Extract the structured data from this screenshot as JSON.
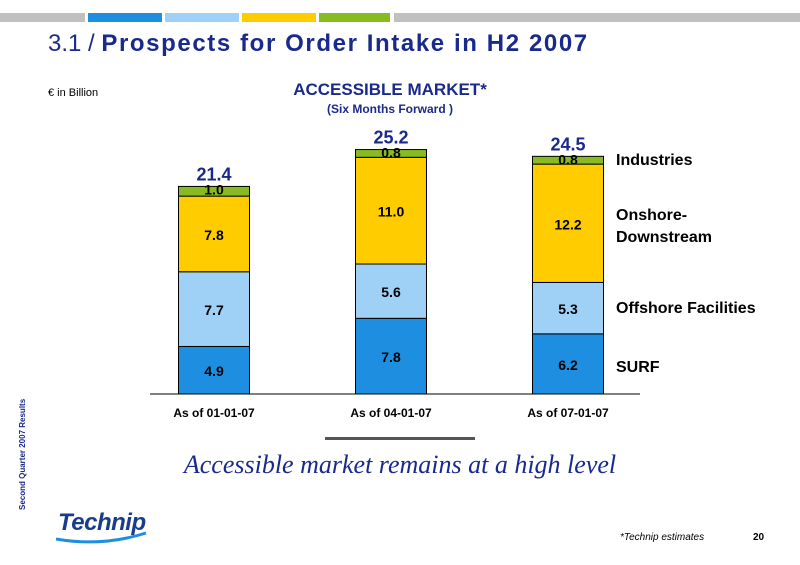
{
  "colors": {
    "topbar": [
      "#c0c0c0",
      "#1e8fe0",
      "#9fd0f5",
      "#ffcc00",
      "#88bb22",
      "#c0c0c0"
    ],
    "series": {
      "SURF": "#1e8fe0",
      "Offshore Facilities": "#9fd0f5",
      "Onshore-Downstream": "#ffcc00",
      "Industries": "#88bb22"
    },
    "title": "#1a2a8c"
  },
  "header": {
    "section_number": "3.1 /",
    "title": "Prospects for Order Intake in H2 2007",
    "unit": "€ in Billion"
  },
  "chart_data": {
    "type": "bar",
    "stacked": true,
    "title": "ACCESSIBLE MARKET*",
    "subtitle": "(Six Months Forward )",
    "categories": [
      "As of 01-01-07",
      "As of 04-01-07",
      "As of 07-01-07"
    ],
    "series": [
      {
        "name": "SURF",
        "values": [
          4.9,
          7.8,
          6.2
        ]
      },
      {
        "name": "Offshore Facilities",
        "values": [
          7.7,
          5.6,
          5.3
        ]
      },
      {
        "name": "Onshore-Downstream",
        "values": [
          7.8,
          11.0,
          12.2
        ]
      },
      {
        "name": "Industries",
        "values": [
          1.0,
          0.8,
          0.8
        ]
      }
    ],
    "value_labels": [
      [
        "4.9",
        "7.8",
        "6.2"
      ],
      [
        "7.7",
        "5.6",
        "5.3"
      ],
      [
        "7.8",
        "11.0",
        "12.2"
      ],
      [
        "1.0",
        "0.8",
        "0.8"
      ]
    ],
    "totals": [
      21.4,
      25.2,
      24.5
    ],
    "total_labels": [
      "21.4",
      "25.2",
      "24.5"
    ],
    "legend_placement": "right",
    "legend_labels": {
      "Industries": "Industries",
      "Onshore-Downstream": [
        "Onshore-",
        "Downstream"
      ],
      "Offshore Facilities": "Offshore Facilities",
      "SURF": "SURF"
    },
    "ylim": [
      0,
      26
    ],
    "grid": false
  },
  "tagline": "Accessible market remains at a high level",
  "side_text": "Second Quarter 2007 Results",
  "logo_text": "Technip",
  "footnote": "*Technip estimates",
  "page_number": "20"
}
